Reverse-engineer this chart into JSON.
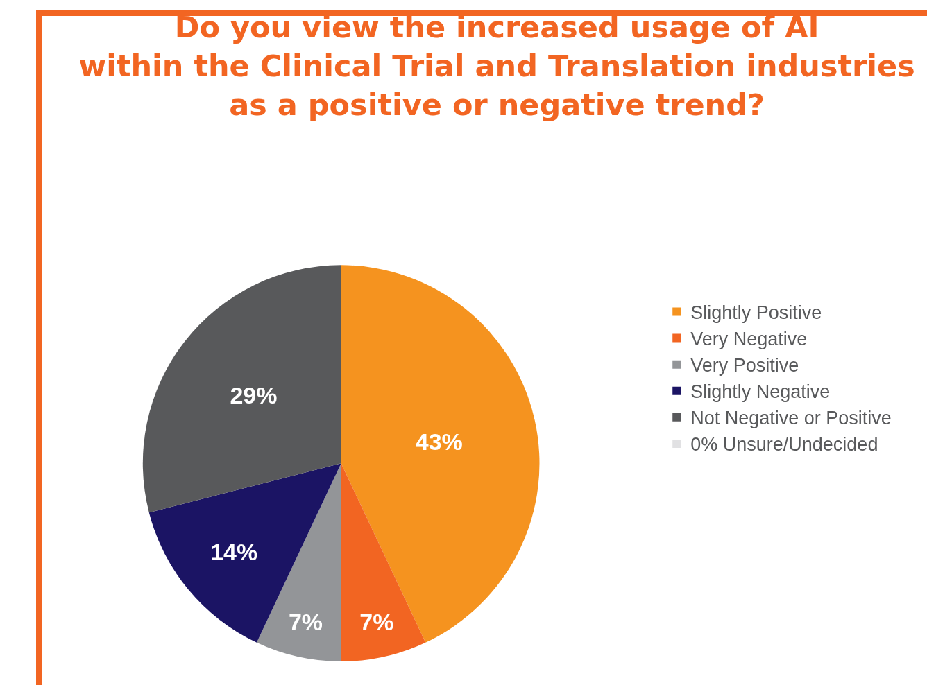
{
  "chart_data": {
    "type": "pie",
    "title": "Do you view the increased usage of AI\nwithin the Clinical Trial and Translation industries\nas a positive or negative trend?",
    "categories": [
      "Slightly Positive",
      "Very Negative",
      "Very Positive",
      "Slightly Negative",
      "Not Negative or Positive",
      "0% Unsure/Undecided"
    ],
    "values": [
      43,
      7,
      7,
      14,
      29,
      0
    ],
    "colors": [
      "#f5931f",
      "#f26522",
      "#939598",
      "#1b1464",
      "#58595b",
      "#e1e1e3"
    ],
    "value_labels": [
      "43%",
      "7%",
      "7%",
      "14%",
      "29%",
      null
    ],
    "legend": "right"
  }
}
